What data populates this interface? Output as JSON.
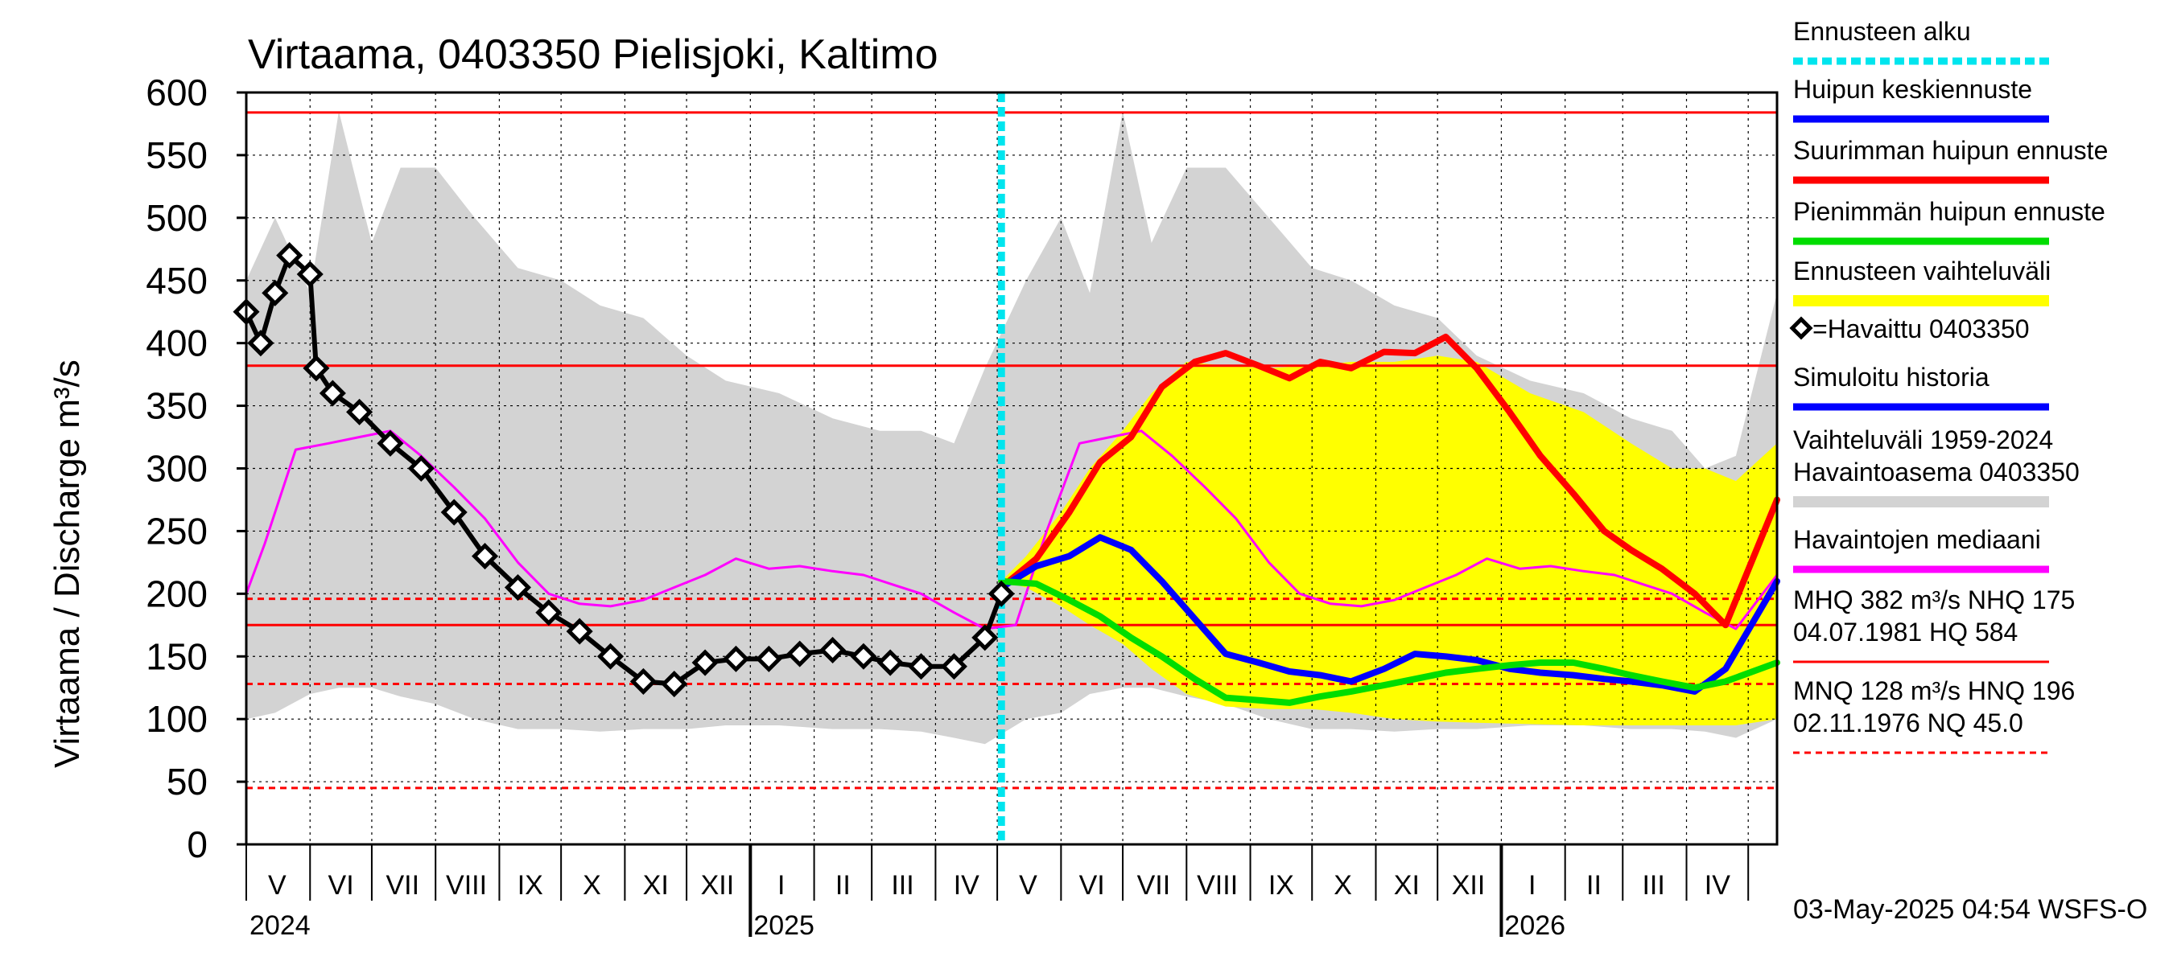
{
  "chart_data": {
    "type": "line",
    "title": "Virtaama, 0403350 Pielisjoki, Kaltimo",
    "ylabel": "Virtaama / Discharge   m³/s",
    "ylim": [
      0,
      600
    ],
    "yticks": [
      0,
      50,
      100,
      150,
      200,
      250,
      300,
      350,
      400,
      450,
      500,
      550,
      600
    ],
    "xlim": [
      "2024-05-01",
      "2026-05-15"
    ],
    "month_labels": [
      {
        "label": "V",
        "mid": "2024-05-16"
      },
      {
        "label": "VI",
        "mid": "2024-06-16"
      },
      {
        "label": "VII",
        "mid": "2024-07-16"
      },
      {
        "label": "VIII",
        "mid": "2024-08-16"
      },
      {
        "label": "IX",
        "mid": "2024-09-16"
      },
      {
        "label": "X",
        "mid": "2024-10-16"
      },
      {
        "label": "XI",
        "mid": "2024-11-16"
      },
      {
        "label": "XII",
        "mid": "2024-12-16"
      },
      {
        "label": "I",
        "mid": "2025-01-16"
      },
      {
        "label": "II",
        "mid": "2025-02-15"
      },
      {
        "label": "III",
        "mid": "2025-03-16"
      },
      {
        "label": "IV",
        "mid": "2025-04-16"
      },
      {
        "label": "V",
        "mid": "2025-05-16"
      },
      {
        "label": "VI",
        "mid": "2025-06-16"
      },
      {
        "label": "VII",
        "mid": "2025-07-16"
      },
      {
        "label": "VIII",
        "mid": "2025-08-16"
      },
      {
        "label": "IX",
        "mid": "2025-09-16"
      },
      {
        "label": "X",
        "mid": "2025-10-16"
      },
      {
        "label": "XI",
        "mid": "2025-11-16"
      },
      {
        "label": "XII",
        "mid": "2025-12-16"
      },
      {
        "label": "I",
        "mid": "2026-01-16"
      },
      {
        "label": "II",
        "mid": "2026-02-15"
      },
      {
        "label": "III",
        "mid": "2026-03-16"
      },
      {
        "label": "IV",
        "mid": "2026-04-16"
      }
    ],
    "year_labels": [
      {
        "label": "2024",
        "date": "2024-05-01"
      },
      {
        "label": "2025",
        "date": "2025-01-01"
      },
      {
        "label": "2026",
        "date": "2026-01-01"
      }
    ],
    "forecast_start": "2025-05-03",
    "reference_lines": [
      {
        "value": 584,
        "style": "solid"
      },
      {
        "value": 382,
        "style": "solid"
      },
      {
        "value": 175,
        "style": "solid"
      },
      {
        "value": 196,
        "style": "dashed"
      },
      {
        "value": 128,
        "style": "dashed"
      },
      {
        "value": 45,
        "style": "dashed"
      }
    ],
    "series": [
      {
        "name": "Vaihteluväli 1959-2024 Havaintoasema 0403350",
        "kind": "band",
        "color": "#d3d3d3",
        "x": [
          "2024-05-01",
          "2024-05-15",
          "2024-06-01",
          "2024-06-15",
          "2024-07-01",
          "2024-07-15",
          "2024-08-01",
          "2024-08-20",
          "2024-09-10",
          "2024-10-01",
          "2024-10-20",
          "2024-11-10",
          "2024-12-01",
          "2024-12-20",
          "2025-01-15",
          "2025-02-10",
          "2025-03-05",
          "2025-03-25",
          "2025-04-10",
          "2025-04-25",
          "2025-05-15",
          "2025-06-01",
          "2025-06-15",
          "2025-07-01",
          "2025-07-15",
          "2025-08-01",
          "2025-08-20",
          "2025-09-10",
          "2025-10-01",
          "2025-10-20",
          "2025-11-10",
          "2025-12-01",
          "2025-12-20",
          "2026-01-15",
          "2026-02-10",
          "2026-03-05",
          "2026-03-25",
          "2026-04-10",
          "2026-04-25",
          "2026-05-15"
        ],
        "low": [
          100,
          105,
          120,
          125,
          125,
          118,
          112,
          100,
          92,
          92,
          90,
          92,
          92,
          95,
          95,
          92,
          92,
          90,
          85,
          80,
          100,
          105,
          120,
          125,
          125,
          118,
          112,
          100,
          92,
          92,
          90,
          92,
          92,
          95,
          95,
          92,
          92,
          90,
          85,
          100
        ],
        "high": [
          450,
          500,
          440,
          585,
          480,
          540,
          540,
          500,
          460,
          450,
          430,
          420,
          390,
          370,
          360,
          340,
          330,
          330,
          320,
          380,
          450,
          500,
          440,
          585,
          480,
          540,
          540,
          500,
          460,
          450,
          430,
          420,
          390,
          370,
          360,
          340,
          330,
          300,
          310,
          440
        ]
      },
      {
        "name": "Ennusteen vaihteluväli",
        "kind": "band",
        "color": "#ffff00",
        "x": [
          "2025-05-03",
          "2025-05-15",
          "2025-06-01",
          "2025-06-15",
          "2025-07-01",
          "2025-07-15",
          "2025-08-01",
          "2025-08-20",
          "2025-09-10",
          "2025-10-01",
          "2025-10-20",
          "2025-11-10",
          "2025-12-01",
          "2025-12-20",
          "2026-01-15",
          "2026-02-10",
          "2026-03-05",
          "2026-03-25",
          "2026-04-10",
          "2026-04-25",
          "2026-05-15"
        ],
        "low": [
          210,
          205,
          190,
          175,
          160,
          140,
          120,
          110,
          108,
          108,
          105,
          100,
          98,
          97,
          96,
          95,
          95,
          95,
          95,
          95,
          100
        ],
        "high": [
          210,
          230,
          265,
          300,
          330,
          360,
          385,
          382,
          380,
          382,
          385,
          385,
          390,
          385,
          360,
          345,
          320,
          300,
          300,
          290,
          320
        ]
      },
      {
        "name": "Havaintojen mediaani",
        "kind": "line",
        "color": "#ff00ff",
        "x": [
          "2024-05-01",
          "2024-05-10",
          "2024-05-25",
          "2024-06-10",
          "2024-06-25",
          "2024-07-10",
          "2024-07-25",
          "2024-08-10",
          "2024-08-25",
          "2024-09-10",
          "2024-09-25",
          "2024-10-10",
          "2024-10-25",
          "2024-11-10",
          "2024-11-25",
          "2024-12-10",
          "2024-12-25",
          "2025-01-10",
          "2025-01-25",
          "2025-02-10",
          "2025-02-25",
          "2025-03-10",
          "2025-03-25",
          "2025-04-10",
          "2025-04-25",
          "2025-05-10",
          "2025-05-25",
          "2025-06-10",
          "2025-06-25",
          "2025-07-10",
          "2025-07-25",
          "2025-08-10",
          "2025-08-25",
          "2025-09-10",
          "2025-09-25",
          "2025-10-10",
          "2025-10-25",
          "2025-11-10",
          "2025-11-25",
          "2025-12-10",
          "2025-12-25",
          "2026-01-10",
          "2026-01-25",
          "2026-02-10",
          "2026-02-25",
          "2026-03-10",
          "2026-03-25",
          "2026-04-10",
          "2026-04-25",
          "2026-05-15"
        ],
        "y": [
          200,
          240,
          315,
          320,
          325,
          330,
          310,
          285,
          260,
          225,
          200,
          192,
          190,
          195,
          205,
          215,
          228,
          220,
          222,
          218,
          215,
          208,
          200,
          185,
          172,
          175,
          250,
          320,
          325,
          330,
          310,
          285,
          260,
          225,
          200,
          192,
          190,
          195,
          205,
          215,
          228,
          220,
          222,
          218,
          215,
          208,
          200,
          185,
          172,
          215
        ]
      },
      {
        "name": "Havaittu 0403350",
        "kind": "observed",
        "color": "#000000",
        "x": [
          "2024-05-01",
          "2024-05-08",
          "2024-05-15",
          "2024-05-22",
          "2024-06-01",
          "2024-06-04",
          "2024-06-12",
          "2024-06-25",
          "2024-07-10",
          "2024-07-25",
          "2024-08-10",
          "2024-08-25",
          "2024-09-10",
          "2024-09-25",
          "2024-10-10",
          "2024-10-25",
          "2024-11-10",
          "2024-11-25",
          "2024-12-10",
          "2024-12-25",
          "2025-01-10",
          "2025-01-25",
          "2025-02-10",
          "2025-02-25",
          "2025-03-10",
          "2025-03-25",
          "2025-04-10",
          "2025-04-25",
          "2025-05-03"
        ],
        "y": [
          425,
          400,
          440,
          470,
          455,
          380,
          360,
          345,
          320,
          300,
          265,
          230,
          205,
          185,
          170,
          150,
          130,
          128,
          145,
          148,
          148,
          152,
          155,
          150,
          145,
          142,
          142,
          165,
          200
        ]
      },
      {
        "name": "Suurimman huipun ennuste",
        "kind": "line",
        "color": "#ff0000",
        "x": [
          "2025-05-03",
          "2025-05-20",
          "2025-06-05",
          "2025-06-20",
          "2025-07-05",
          "2025-07-20",
          "2025-08-05",
          "2025-08-20",
          "2025-09-05",
          "2025-09-20",
          "2025-10-05",
          "2025-10-20",
          "2025-11-05",
          "2025-11-20",
          "2025-12-05",
          "2025-12-20",
          "2026-01-05",
          "2026-01-20",
          "2026-02-05",
          "2026-02-20",
          "2026-03-05",
          "2026-03-20",
          "2026-04-05",
          "2026-04-20",
          "2026-05-15"
        ],
        "y": [
          205,
          228,
          265,
          305,
          325,
          365,
          385,
          392,
          382,
          372,
          385,
          380,
          393,
          392,
          405,
          380,
          345,
          310,
          280,
          250,
          235,
          220,
          200,
          175,
          275
        ]
      },
      {
        "name": "Huipun keskiennuste",
        "kind": "line",
        "color": "#0000ff",
        "x": [
          "2025-05-03",
          "2025-05-20",
          "2025-06-05",
          "2025-06-20",
          "2025-07-05",
          "2025-07-20",
          "2025-08-05",
          "2025-08-20",
          "2025-09-05",
          "2025-09-20",
          "2025-10-05",
          "2025-10-20",
          "2025-11-05",
          "2025-11-20",
          "2025-12-05",
          "2025-12-20",
          "2026-01-05",
          "2026-01-20",
          "2026-02-05",
          "2026-02-20",
          "2026-03-05",
          "2026-03-20",
          "2026-04-05",
          "2026-04-20",
          "2026-05-15"
        ],
        "y": [
          205,
          222,
          230,
          245,
          235,
          210,
          180,
          152,
          145,
          138,
          135,
          130,
          140,
          152,
          150,
          147,
          140,
          137,
          135,
          132,
          130,
          127,
          122,
          140,
          210
        ]
      },
      {
        "name": "Pienimmän huipun ennuste",
        "kind": "line",
        "color": "#00dd00",
        "x": [
          "2025-05-03",
          "2025-05-20",
          "2025-06-05",
          "2025-06-20",
          "2025-07-05",
          "2025-07-20",
          "2025-08-05",
          "2025-08-20",
          "2025-09-05",
          "2025-09-20",
          "2025-10-05",
          "2025-10-20",
          "2025-11-05",
          "2025-11-20",
          "2025-12-05",
          "2025-12-20",
          "2026-01-05",
          "2026-01-20",
          "2026-02-05",
          "2026-02-20",
          "2026-03-05",
          "2026-03-20",
          "2026-04-05",
          "2026-04-20",
          "2026-05-15"
        ],
        "y": [
          210,
          208,
          195,
          182,
          165,
          150,
          132,
          117,
          115,
          113,
          118,
          122,
          127,
          132,
          137,
          140,
          143,
          145,
          145,
          140,
          135,
          130,
          125,
          130,
          145
        ]
      }
    ]
  },
  "legend": [
    {
      "label": "Ennusteen alku",
      "color": "#00e5ee",
      "style": "dashed"
    },
    {
      "label": "Huipun keskiennuste",
      "color": "#0000ff",
      "style": "solid"
    },
    {
      "label": "Suurimman huipun ennuste",
      "color": "#ff0000",
      "style": "solid"
    },
    {
      "label": "Pienimmän huipun ennuste",
      "color": "#00dd00",
      "style": "solid"
    },
    {
      "label": "Ennusteen vaihteluväli",
      "color": "#ffff00",
      "style": "solid"
    },
    {
      "label": "=Havaittu 0403350",
      "color": "#000000",
      "style": "marker"
    },
    {
      "label": "Simuloitu historia",
      "color": "#0000ff",
      "style": "solid"
    },
    {
      "label": "Vaihteluväli 1959-2024\n Havaintoasema 0403350",
      "color": "#d3d3d3",
      "style": "solid"
    },
    {
      "label": "Havaintojen mediaani",
      "color": "#ff00ff",
      "style": "solid"
    },
    {
      "label": "MHQ  382 m³/s NHQ  175\n04.07.1981 HQ  584",
      "color": "#ff0000",
      "style": "solid"
    },
    {
      "label": "MNQ  128 m³/s HNQ  196\n02.11.1976 NQ 45.0",
      "color": "#ff0000",
      "style": "dashed"
    }
  ],
  "footer": "03-May-2025 04:54 WSFS-O"
}
